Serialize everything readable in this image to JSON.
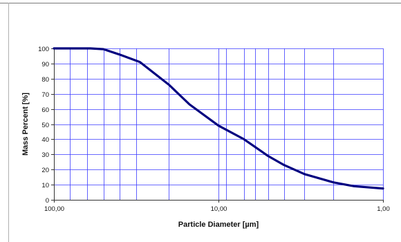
{
  "chart_data": {
    "type": "line",
    "title": "",
    "xlabel": "Particle Diameter [µm]",
    "ylabel": "Mass Percent [%]",
    "x_scale": "log",
    "x_reversed": true,
    "xlim": [
      100,
      1
    ],
    "ylim": [
      0,
      100
    ],
    "grid": true,
    "x_ticks": [
      "100,00",
      "10,00",
      "1,00"
    ],
    "y_ticks": [
      "0",
      "10",
      "20",
      "30",
      "40",
      "50",
      "60",
      "70",
      "80",
      "90",
      "100"
    ],
    "x_gridlines": [
      80,
      63,
      50,
      40,
      31.5,
      20,
      9,
      7,
      6,
      5,
      4,
      3,
      2
    ],
    "series": [
      {
        "name": "",
        "x": [
          100,
          60,
          50,
          40,
          30,
          20,
          15,
          10,
          7,
          5,
          4,
          3,
          2,
          1.5,
          1
        ],
        "y": [
          100,
          100,
          99.5,
          96,
          91,
          76,
          63,
          49,
          40,
          29,
          23,
          17,
          11.5,
          9,
          7.5
        ]
      }
    ],
    "colors": {
      "series": "#00007f",
      "grid": "#3a3aff",
      "axis": "#333333",
      "plot_frame": "#7f7f7f"
    }
  }
}
